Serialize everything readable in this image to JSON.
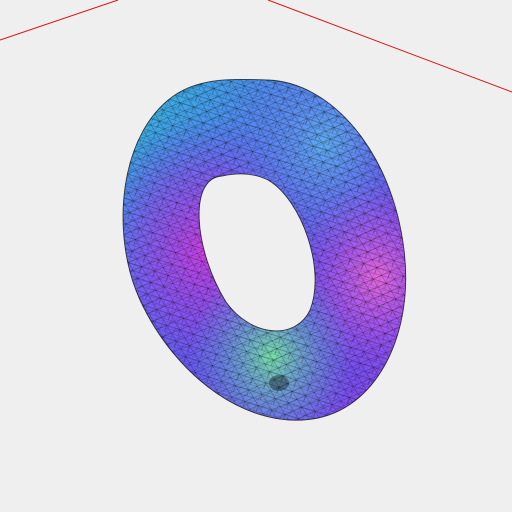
{
  "scene": {
    "background_color": "#efefef",
    "axis_color": "#e01010",
    "mesh_wire_color": "#000000",
    "object": "torus",
    "surface_shading": "normal-map",
    "colors": {
      "blue": "#4a5cf2",
      "cyan": "#35c9d9",
      "green": "#6fe89a",
      "magenta": "#d13be3",
      "violet": "#8a44ee",
      "pink": "#f06ad8"
    }
  }
}
